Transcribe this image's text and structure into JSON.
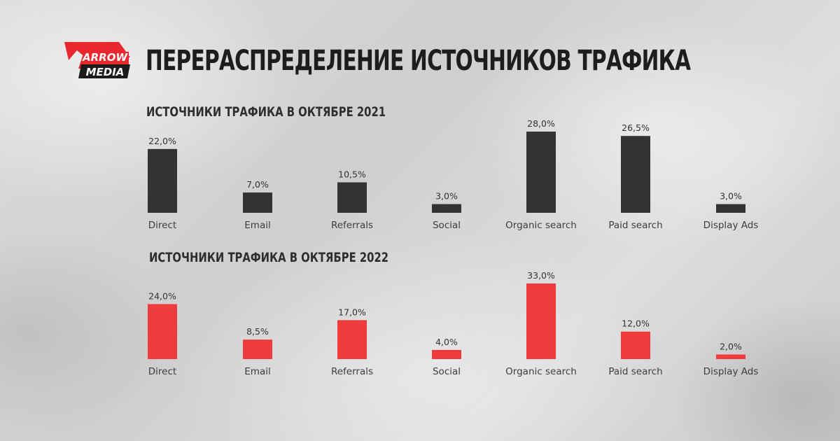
{
  "header": {
    "title": "ПЕРЕРАСПРЕДЕЛЕНИЕ ИСТОЧНИКОВ ТРАФИКА",
    "logo": {
      "line1": "ARROW",
      "line2": "MEDIA",
      "colors": {
        "red": "#e8272e",
        "black": "#1b1b1b",
        "text": "#ffffff"
      }
    }
  },
  "chart_data": [
    {
      "type": "bar",
      "title": "ИСТОЧНИКИ ТРАФИКА В ОКТЯБРЕ 2021",
      "categories": [
        "Direct",
        "Email",
        "Referrals",
        "Social",
        "Organic search",
        "Paid search",
        "Display Ads"
      ],
      "values": [
        22.0,
        7.0,
        10.5,
        3.0,
        28.0,
        26.5,
        3.0
      ],
      "value_labels": [
        "22,0%",
        "7,0%",
        "10,5%",
        "3,0%",
        "28,0%",
        "26,5%",
        "3,0%"
      ],
      "unit": "%",
      "ylim": [
        0,
        28
      ],
      "grid": false,
      "color": "#333333"
    },
    {
      "type": "bar",
      "title": "ИСТОЧНИКИ ТРАФИКА В ОКТЯБРЕ 2022",
      "categories": [
        "Direct",
        "Email",
        "Referrals",
        "Social",
        "Organic search",
        "Paid search",
        "Display Ads"
      ],
      "values": [
        24.0,
        8.5,
        17.0,
        4.0,
        33.0,
        12.0,
        2.0
      ],
      "value_labels": [
        "24,0%",
        "8,5%",
        "17,0%",
        "4,0%",
        "33,0%",
        "12,0%",
        "2,0%"
      ],
      "unit": "%",
      "ylim": [
        0,
        33
      ],
      "grid": false,
      "color": "#ef3b3b"
    }
  ]
}
